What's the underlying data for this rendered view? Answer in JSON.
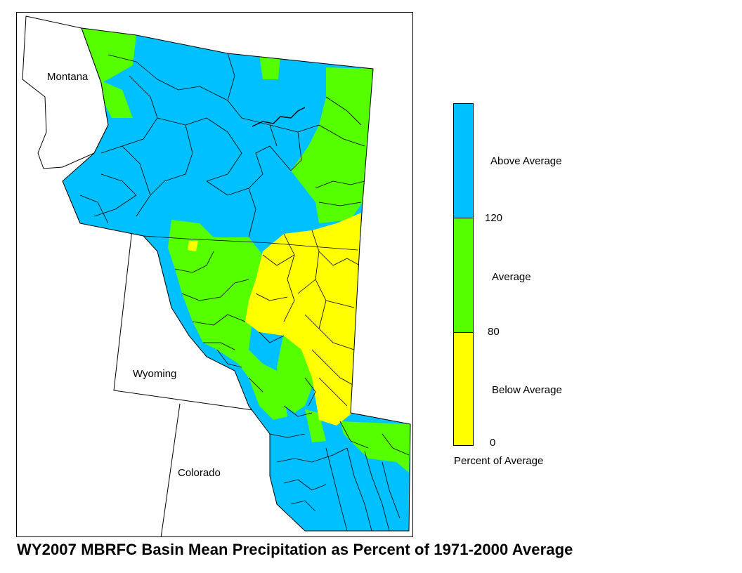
{
  "title": "WY2007 MBRFC Basin Mean Precipitation as Percent of 1971-2000 Average",
  "map": {
    "state_labels": {
      "montana": "Montana",
      "wyoming": "Wyoming",
      "colorado": "Colorado"
    }
  },
  "legend": {
    "caption": "Percent of Average",
    "categories": [
      {
        "label": "Above Average",
        "color": "#00c0ff",
        "min": 120,
        "max": null
      },
      {
        "label": "Average",
        "color": "#55ff00",
        "min": 80,
        "max": 120
      },
      {
        "label": "Below Average",
        "color": "#ffff00",
        "min": 0,
        "max": 80
      }
    ],
    "ticks": [
      "120",
      "80",
      "0"
    ]
  },
  "colors": {
    "above_average": "#00c0ff",
    "average": "#55ff00",
    "below_average": "#ffff00",
    "boundary": "#000000",
    "background": "#ffffff"
  }
}
